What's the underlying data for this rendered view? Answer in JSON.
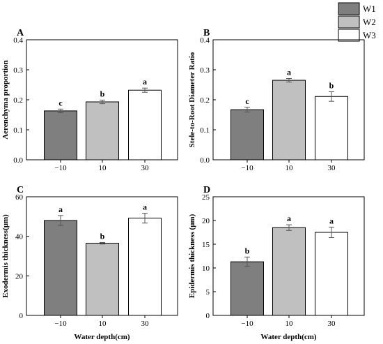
{
  "legend": {
    "entries": [
      {
        "label": "W1",
        "color": "#7f7f7f"
      },
      {
        "label": "W2",
        "color": "#c0c0c0"
      },
      {
        "label": "W3",
        "color": "#ffffff"
      }
    ]
  },
  "chart_data": [
    {
      "panel": "A",
      "type": "bar",
      "categories": [
        "−10",
        "10",
        "30"
      ],
      "values": [
        0.163,
        0.193,
        0.232
      ],
      "errors": [
        0.006,
        0.006,
        0.007
      ],
      "significance": [
        "c",
        "b",
        "a"
      ],
      "colors": [
        "#7f7f7f",
        "#c0c0c0",
        "#ffffff"
      ],
      "xlabel": "",
      "ylabel": "Aerenchyma proportion",
      "ylim": [
        0,
        0.4
      ],
      "yticks": [
        "0.0",
        "0.1",
        "0.2",
        "0.3",
        "0.4"
      ],
      "ytick_values": [
        0,
        0.1,
        0.2,
        0.3,
        0.4
      ]
    },
    {
      "panel": "B",
      "type": "bar",
      "categories": [
        "−10",
        "10",
        "30"
      ],
      "values": [
        0.167,
        0.265,
        0.211
      ],
      "errors": [
        0.008,
        0.006,
        0.016
      ],
      "significance": [
        "c",
        "a",
        "b"
      ],
      "colors": [
        "#7f7f7f",
        "#c0c0c0",
        "#ffffff"
      ],
      "xlabel": "",
      "ylabel": "Stele-to-Root Diameter Ratio",
      "ylim": [
        0,
        0.4
      ],
      "yticks": [
        "0.0",
        "0.1",
        "0.2",
        "0.3",
        "0.4"
      ],
      "ytick_values": [
        0,
        0.1,
        0.2,
        0.3,
        0.4
      ]
    },
    {
      "panel": "C",
      "type": "bar",
      "categories": [
        "−10",
        "10",
        "30"
      ],
      "values": [
        48.0,
        36.5,
        49.2
      ],
      "errors": [
        2.5,
        0.4,
        2.5
      ],
      "significance": [
        "a",
        "b",
        "a"
      ],
      "colors": [
        "#7f7f7f",
        "#c0c0c0",
        "#ffffff"
      ],
      "xlabel": "Water depth(cm)",
      "ylabel": "Exodermis thickness(μm)",
      "ylim": [
        0,
        60
      ],
      "yticks": [
        "0",
        "20",
        "40",
        "60"
      ],
      "ytick_values": [
        0,
        20,
        40,
        60
      ]
    },
    {
      "panel": "D",
      "type": "bar",
      "categories": [
        "−10",
        "10",
        "30"
      ],
      "values": [
        11.3,
        18.5,
        17.5
      ],
      "errors": [
        1.0,
        0.6,
        1.1
      ],
      "significance": [
        "b",
        "a",
        "a"
      ],
      "colors": [
        "#7f7f7f",
        "#c0c0c0",
        "#ffffff"
      ],
      "xlabel": "Water depth(cm)",
      "ylabel": "Epidermis thickness (μm)",
      "ylim": [
        0,
        25
      ],
      "yticks": [
        "0",
        "5",
        "10",
        "15",
        "20",
        "25"
      ],
      "ytick_values": [
        0,
        5,
        10,
        15,
        20,
        25
      ]
    }
  ]
}
